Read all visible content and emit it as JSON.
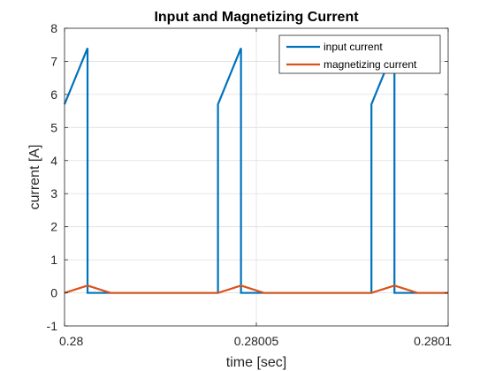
{
  "chart_data": {
    "type": "line",
    "title": "Input and Magnetizing Current",
    "xlabel": "time [sec]",
    "ylabel": "current [A]",
    "xlim": [
      0.28,
      0.2801
    ],
    "ylim": [
      -1,
      8
    ],
    "xticks": [
      0.28,
      0.28005,
      0.2801
    ],
    "xtick_labels": [
      "0.28",
      "0.28005",
      "0.2801"
    ],
    "yticks": [
      -1,
      0,
      1,
      2,
      3,
      4,
      5,
      6,
      7,
      8
    ],
    "ytick_labels": [
      "-1",
      "0",
      "1",
      "2",
      "3",
      "4",
      "5",
      "6",
      "7",
      "8"
    ],
    "grid": true,
    "legend_position": "top-right",
    "series": [
      {
        "name": "input current",
        "color": "#0072BD",
        "x": [
          0.28,
          0.280006,
          0.280006,
          0.280012,
          0.28004,
          0.28004,
          0.280046,
          0.280046,
          0.280052,
          0.28008,
          0.28008,
          0.280086,
          0.280086,
          0.280092,
          0.2801
        ],
        "y": [
          5.7,
          7.4,
          0.0,
          0.0,
          0.0,
          5.7,
          7.4,
          0.0,
          0.0,
          0.0,
          5.7,
          7.4,
          0.0,
          0.0,
          0.0
        ]
      },
      {
        "name": "magnetizing current",
        "color": "#D95319",
        "x": [
          0.28,
          0.280006,
          0.280012,
          0.28004,
          0.280046,
          0.280052,
          0.28008,
          0.280086,
          0.280092,
          0.2801
        ],
        "y": [
          0.0,
          0.22,
          0.0,
          0.0,
          0.22,
          0.0,
          0.0,
          0.22,
          0.0,
          0.0
        ]
      }
    ]
  }
}
